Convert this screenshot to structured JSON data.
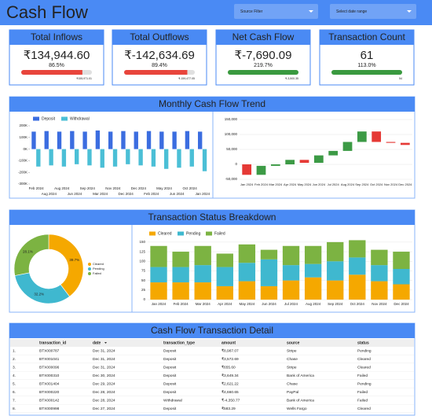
{
  "header": {
    "title": "Cash Flow",
    "filters": [
      "Source Filter",
      "Select date range"
    ]
  },
  "kpis": [
    {
      "title": "Total Inflows",
      "value": "₹134,944.60",
      "progress": {
        "value": 86.5,
        "label": "86.5%"
      },
      "target": "₹155,971.01",
      "color": "#e8453c"
    },
    {
      "title": "Total Outflows",
      "value": "₹-142,634.69",
      "progress": {
        "value": 89.4,
        "label": "89.4%"
      },
      "target": "₹-159,477.05",
      "color": "#e8453c"
    },
    {
      "title": "Net Cash Flow",
      "value": "₹-7,690.09",
      "progress": {
        "value": 219.7,
        "label": "219.7%"
      },
      "target": "₹-3,500.35",
      "color": "#3a9a3f"
    },
    {
      "title": "Transaction Count",
      "value": "61",
      "progress": {
        "value": 113.0,
        "label": "113.0%"
      },
      "target": "54",
      "color": "#3a9a3f"
    }
  ],
  "sections": [
    "Monthly Cash Flow Trend",
    "Transaction Status Breakdown"
  ],
  "chart_data": [
    {
      "type": "bar",
      "categories": [
        "Feb 2024",
        "Aug 2024",
        "Aug 2024",
        "Jun 2024",
        "Sep 2024",
        "Mar 2024",
        "Nov 2024",
        "Dec 2024",
        "Dec 2024",
        "Feb 2024",
        "May 2024",
        "Jun 2024",
        "Oct 2024",
        "Jan 2024"
      ],
      "series": [
        {
          "name": "Deposit",
          "color": "#3b6de0",
          "values": [
            150000,
            155000,
            150000,
            155000,
            150000,
            160000,
            150000,
            155000,
            150000,
            155000,
            150000,
            150000,
            155000,
            150000
          ]
        },
        {
          "name": "Withdrawal",
          "color": "#4bbfd6",
          "values": [
            -150000,
            -140000,
            -150000,
            -130000,
            -140000,
            -160000,
            -150000,
            -130000,
            -140000,
            -150000,
            -170000,
            -160000,
            -150000,
            -190000
          ]
        }
      ],
      "ylim": [
        -300000,
        200000
      ],
      "yticks": [
        {
          "value": 200000,
          "label": "200K"
        },
        {
          "value": 100000,
          "label": "100K"
        },
        {
          "value": 0,
          "label": "0K"
        },
        {
          "value": -100000,
          "label": "-100K"
        },
        {
          "value": -200000,
          "label": "-200K"
        },
        {
          "value": -300000,
          "label": "-300K"
        }
      ],
      "grid": false
    },
    {
      "type": "waterfall",
      "categories": [
        "Jan 2024",
        "Feb 2024",
        "Mar 2024",
        "Apr 2024",
        "May 2024",
        "Jun 2024",
        "Jul 2024",
        "Aug 2024",
        "Sep 2024",
        "Oct 2024",
        "Nov 2024",
        "Dec 2024"
      ],
      "values": [
        -35000,
        30000,
        5000,
        15000,
        -10000,
        25000,
        15000,
        30000,
        35000,
        -35000,
        -3000,
        -7000
      ],
      "increase_color": "#3c9a45",
      "decrease_color": "#e53935",
      "ylim": [
        -50000,
        150000
      ],
      "yticks": [
        {
          "value": 150000,
          "label": "150,000"
        },
        {
          "value": 100000,
          "label": "100,000"
        },
        {
          "value": 50000,
          "label": "50,000"
        },
        0,
        {
          "value": -50000,
          "label": "-50,000"
        }
      ],
      "grid": true
    },
    {
      "type": "donut",
      "categories": [
        "Cleared",
        "Pending",
        "Failed"
      ],
      "values": [
        39.7,
        32.2,
        28.1
      ],
      "value_labels": [
        "39.7%",
        "32.2%",
        "28.1%"
      ],
      "colors": [
        "#f5a800",
        "#3fb8cf",
        "#7cb342"
      ]
    },
    {
      "type": "stacked_bar",
      "categories": [
        "Jan 2024",
        "Feb 2024",
        "Mar 2024",
        "Apr 2024",
        "May 2024",
        "Jun 2024",
        "Jul 2024",
        "Aug 2024",
        "Sep 2024",
        "Oct 2024",
        "Nov 2024",
        "Dec 2024"
      ],
      "series": [
        {
          "name": "Cleared",
          "color": "#f5a800",
          "values": [
            45,
            45,
            45,
            35,
            48,
            35,
            50,
            58,
            50,
            65,
            48,
            40
          ]
        },
        {
          "name": "Pending",
          "color": "#3fb8cf",
          "values": [
            40,
            40,
            45,
            50,
            48,
            70,
            40,
            35,
            50,
            45,
            42,
            40
          ]
        },
        {
          "name": "Failed",
          "color": "#7cb342",
          "values": [
            55,
            40,
            50,
            35,
            48,
            25,
            50,
            47,
            50,
            45,
            40,
            45
          ]
        }
      ],
      "ylim": [
        0,
        160
      ],
      "yticks": [
        0,
        25,
        50,
        75,
        100,
        125,
        150
      ],
      "grid": true
    }
  ],
  "table": {
    "title": "Cash Flow Transaction Detail",
    "columns": [
      "transaction_id",
      "date",
      "transaction_type",
      "amount",
      "source",
      "status"
    ],
    "rows": [
      [
        "1.",
        "BTX000787",
        "Dec 31, 2024",
        "Deposit",
        "₹8,987.07",
        "Stripe",
        "Pending"
      ],
      [
        "2.",
        "BTX001041",
        "Dec 31, 2024",
        "Deposit",
        "₹3,572.69",
        "Chase",
        "Cleared"
      ],
      [
        "3.",
        "BTX000096",
        "Dec 31, 2024",
        "Deposit",
        "₹655.60",
        "Stripe",
        "Cleared"
      ],
      [
        "4.",
        "BTX000310",
        "Dec 30, 2024",
        "Deposit",
        "₹3,649.34",
        "Bank of America",
        "Failed"
      ],
      [
        "5.",
        "BTX001404",
        "Dec 29, 2024",
        "Deposit",
        "₹2,621.22",
        "Chase",
        "Pending"
      ],
      [
        "6.",
        "BTX000220",
        "Dec 28, 2024",
        "Deposit",
        "₹4,660.65",
        "PayPal",
        "Failed"
      ],
      [
        "7.",
        "BTX000142",
        "Dec 28, 2024",
        "Withdrawal",
        "₹-4,350.77",
        "Bank of America",
        "Failed"
      ],
      [
        "8.",
        "BTX000998",
        "Dec 27, 2024",
        "Deposit",
        "₹583.29",
        "Wells Fargo",
        "Cleared"
      ]
    ]
  }
}
